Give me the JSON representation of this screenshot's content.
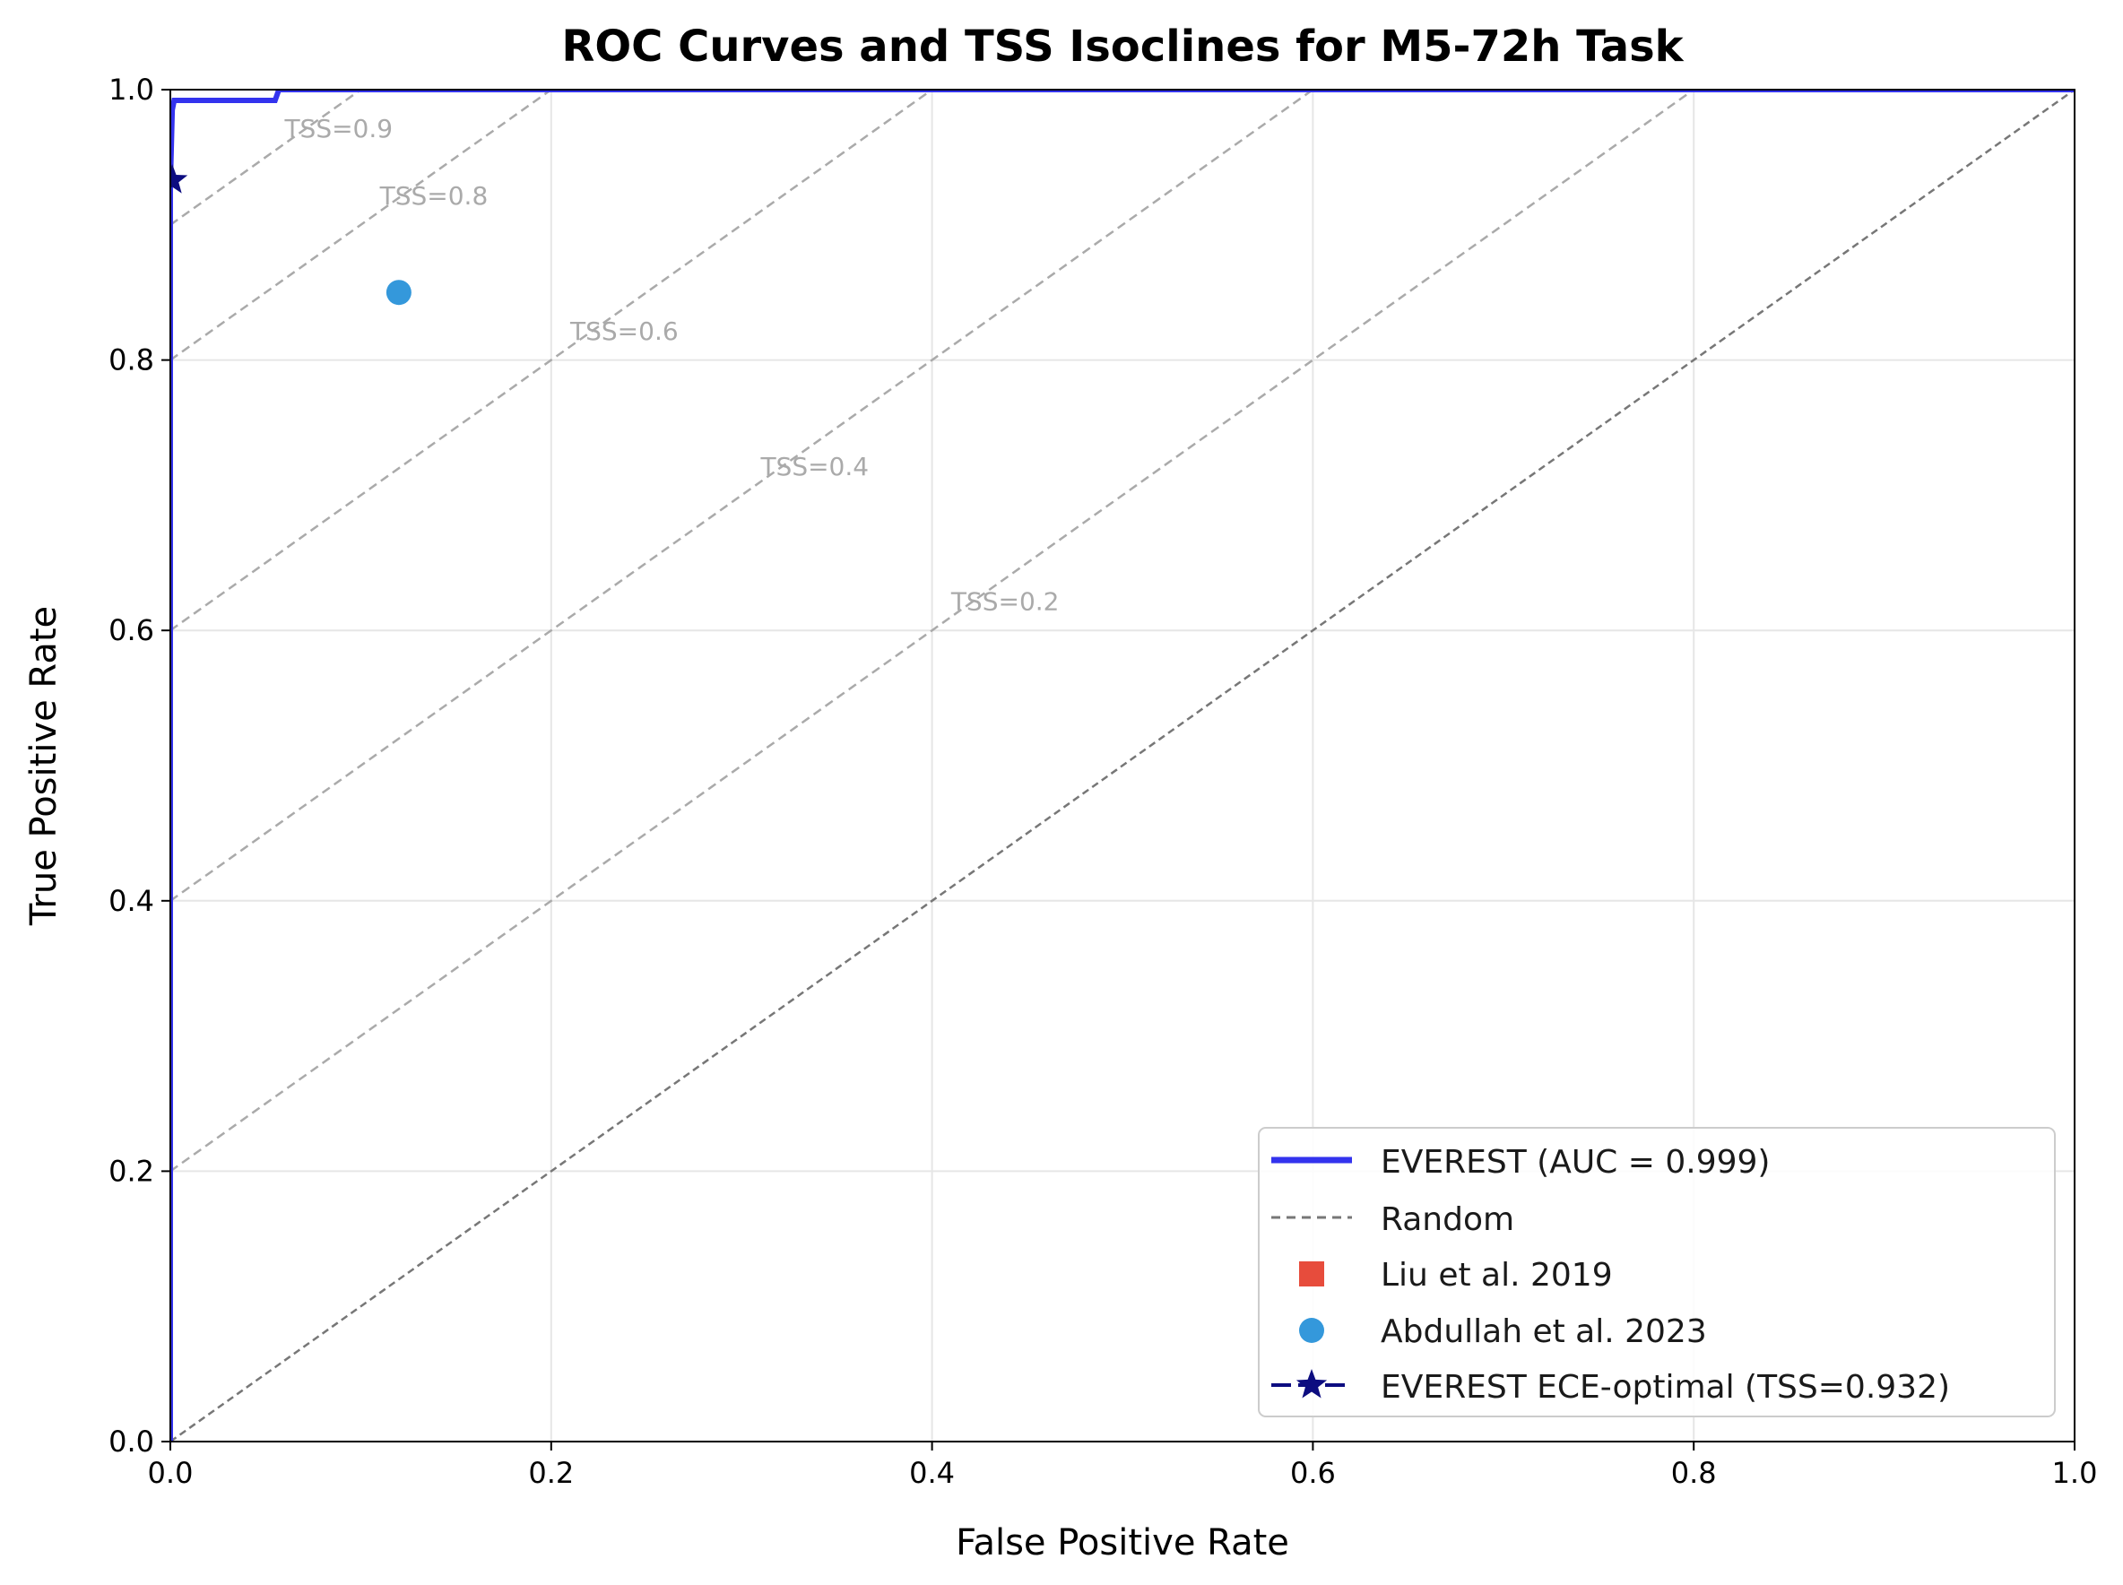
{
  "chart_data": {
    "type": "line",
    "title": "ROC Curves and TSS Isoclines for M5-72h Task",
    "xlabel": "False Positive Rate",
    "ylabel": "True Positive Rate",
    "xlim": [
      0.0,
      1.0
    ],
    "ylim": [
      0.0,
      1.0
    ],
    "xticks": [
      0.0,
      0.2,
      0.4,
      0.6,
      0.8,
      1.0
    ],
    "yticks": [
      0.0,
      0.2,
      0.4,
      0.6,
      0.8,
      1.0
    ],
    "xtick_labels": [
      "0.0",
      "0.2",
      "0.4",
      "0.6",
      "0.8",
      "1.0"
    ],
    "ytick_labels": [
      "0.0",
      "0.2",
      "0.4",
      "0.6",
      "0.8",
      "1.0"
    ],
    "grid": true,
    "legend_position": "bottom-right",
    "roc_curve": {
      "name": "EVEREST (AUC = 0.999)",
      "color": "#3333ee",
      "x": [
        0.0,
        0.0,
        0.001,
        0.002,
        0.055,
        0.057,
        1.0
      ],
      "y": [
        0.0,
        0.93,
        0.985,
        0.992,
        0.992,
        1.0,
        1.0
      ]
    },
    "random_line": {
      "name": "Random",
      "color": "#777777",
      "x": [
        0.0,
        1.0
      ],
      "y": [
        0.0,
        1.0
      ]
    },
    "isoclines": {
      "color": "#aaaaaa",
      "values": [
        0.2,
        0.4,
        0.6,
        0.8,
        0.9
      ],
      "labels": [
        {
          "text": "TSS=0.9",
          "x": 0.06,
          "y": 0.965
        },
        {
          "text": "TSS=0.8",
          "x": 0.11,
          "y": 0.915
        },
        {
          "text": "TSS=0.6",
          "x": 0.21,
          "y": 0.815
        },
        {
          "text": "TSS=0.4",
          "x": 0.31,
          "y": 0.715
        },
        {
          "text": "TSS=0.2",
          "x": 0.41,
          "y": 0.615
        }
      ]
    },
    "points": [
      {
        "name": "Liu et al. 2019",
        "marker": "square",
        "color": "#e74c3c",
        "shown": false
      },
      {
        "name": "Abdullah et al. 2023",
        "marker": "circle",
        "color": "#3498db",
        "x": 0.12,
        "y": 0.85,
        "shown": true
      },
      {
        "name": "EVEREST ECE-optimal (TSS=0.932)",
        "marker": "star",
        "color": "#0d0d80",
        "x": 0.001,
        "y": 0.933,
        "shown": true
      }
    ]
  }
}
